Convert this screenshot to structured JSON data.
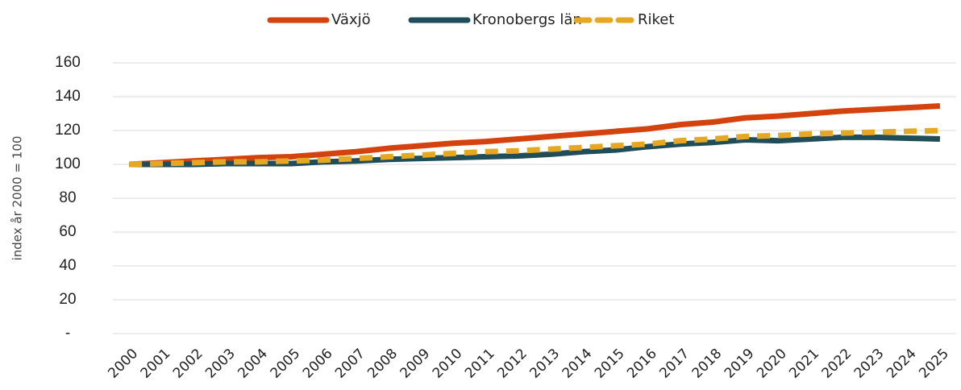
{
  "chart_data": {
    "type": "line",
    "ylabel": "index år 2000 = 100",
    "categories": [
      "2000",
      "2001",
      "2002",
      "2003",
      "2004",
      "2005",
      "2006",
      "2007",
      "2008",
      "2009",
      "2010",
      "2011",
      "2012",
      "2013",
      "2014",
      "2015",
      "2016",
      "2017",
      "2018",
      "2019",
      "2020",
      "2021",
      "2022",
      "2023",
      "2024",
      "2025"
    ],
    "series": [
      {
        "name": "Växjö",
        "color": "#d4420e",
        "dashed": false,
        "values": [
          100,
          101,
          102,
          103,
          104,
          104.5,
          106,
          107.5,
          109.5,
          111,
          112.5,
          113.5,
          115,
          116.5,
          118,
          119.5,
          121,
          123.5,
          125,
          127.5,
          128.5,
          130,
          131.5,
          132.5,
          133.5,
          134.5
        ]
      },
      {
        "name": "Kronobergs län",
        "color": "#1f4e5a",
        "dashed": false,
        "values": [
          100,
          100,
          100,
          100.5,
          100.5,
          100.5,
          101.5,
          102,
          103,
          103.5,
          104,
          104.5,
          105,
          106,
          107.5,
          108.5,
          110.5,
          112,
          113,
          114.5,
          114,
          115,
          116,
          116,
          115.5,
          115
        ]
      },
      {
        "name": "Riket",
        "color": "#e6a823",
        "dashed": true,
        "values": [
          100,
          100.5,
          101,
          101.5,
          101.5,
          102,
          102.5,
          103.5,
          104.5,
          105.5,
          106.5,
          107.5,
          108,
          109,
          110,
          111,
          112,
          114,
          115,
          116.5,
          117,
          118,
          118.5,
          119,
          119.5,
          120
        ]
      }
    ],
    "ylim": [
      0,
      160
    ],
    "yticks": [
      {
        "value": 0,
        "label": "-"
      },
      20,
      40,
      60,
      80,
      100,
      120,
      140,
      160
    ],
    "grid": true,
    "legend": "top"
  }
}
